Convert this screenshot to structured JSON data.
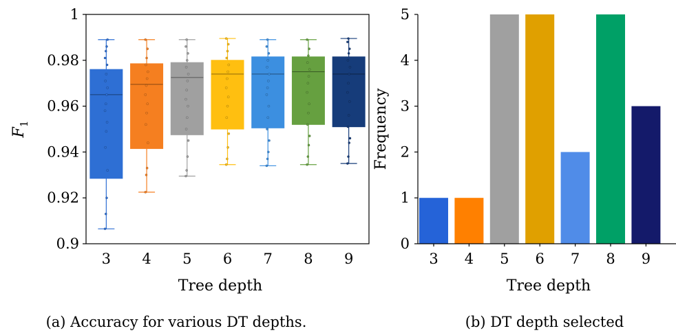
{
  "chart_data": [
    {
      "type": "box",
      "caption": "(a) Accuracy for various DT depths.",
      "xlabel": "Tree depth",
      "ylabel": "F",
      "ylabel_sub": "1",
      "categories": [
        "3",
        "4",
        "5",
        "6",
        "7",
        "8",
        "9"
      ],
      "ylim": [
        0.9,
        1.0
      ],
      "yticks": [
        0.9,
        0.92,
        0.94,
        0.96,
        0.98,
        1.0
      ],
      "ytick_labels": [
        "0.9",
        "0.92",
        "0.94",
        "0.96",
        "0.98",
        "1"
      ],
      "colors": [
        "#2e6fd4",
        "#f57f20",
        "#a0a0a0",
        "#ffbf10",
        "#3c8fe0",
        "#66a040",
        "#163c7a"
      ],
      "boxes": [
        {
          "whislo": 0.9065,
          "q1": 0.9285,
          "med": 0.965,
          "q3": 0.976,
          "whishi": 0.989
        },
        {
          "whislo": 0.9225,
          "q1": 0.9415,
          "med": 0.9695,
          "q3": 0.9785,
          "whishi": 0.989
        },
        {
          "whislo": 0.9295,
          "q1": 0.9475,
          "med": 0.9725,
          "q3": 0.979,
          "whishi": 0.989
        },
        {
          "whislo": 0.9345,
          "q1": 0.95,
          "med": 0.974,
          "q3": 0.98,
          "whishi": 0.9895
        },
        {
          "whislo": 0.934,
          "q1": 0.9505,
          "med": 0.974,
          "q3": 0.9815,
          "whishi": 0.989
        },
        {
          "whislo": 0.9345,
          "q1": 0.952,
          "med": 0.975,
          "q3": 0.9815,
          "whishi": 0.989
        },
        {
          "whislo": 0.935,
          "q1": 0.951,
          "med": 0.974,
          "q3": 0.9815,
          "whishi": 0.9895
        }
      ],
      "points": [
        [
          0.9065,
          0.913,
          0.92,
          0.932,
          0.942,
          0.949,
          0.953,
          0.958,
          0.961,
          0.965,
          0.968,
          0.971,
          0.974,
          0.978,
          0.981,
          0.984,
          0.986,
          0.989
        ],
        [
          0.9225,
          0.93,
          0.933,
          0.944,
          0.952,
          0.957,
          0.961,
          0.965,
          0.969,
          0.972,
          0.975,
          0.978,
          0.981,
          0.985,
          0.989
        ],
        [
          0.9295,
          0.932,
          0.938,
          0.945,
          0.95,
          0.955,
          0.96,
          0.963,
          0.967,
          0.971,
          0.974,
          0.977,
          0.98,
          0.983,
          0.986,
          0.989
        ],
        [
          0.9345,
          0.937,
          0.942,
          0.948,
          0.955,
          0.96,
          0.964,
          0.968,
          0.972,
          0.975,
          0.978,
          0.981,
          0.984,
          0.987,
          0.9895
        ],
        [
          0.934,
          0.937,
          0.94,
          0.945,
          0.95,
          0.955,
          0.96,
          0.965,
          0.968,
          0.971,
          0.974,
          0.977,
          0.98,
          0.983,
          0.986,
          0.989
        ],
        [
          0.9345,
          0.938,
          0.943,
          0.947,
          0.952,
          0.957,
          0.961,
          0.966,
          0.97,
          0.973,
          0.976,
          0.979,
          0.982,
          0.985,
          0.989
        ],
        [
          0.935,
          0.938,
          0.944,
          0.946,
          0.951,
          0.956,
          0.962,
          0.966,
          0.97,
          0.974,
          0.977,
          0.98,
          0.983,
          0.985,
          0.988,
          0.9895
        ]
      ]
    },
    {
      "type": "bar",
      "caption": "(b) DT depth selected",
      "xlabel": "Tree depth",
      "ylabel": "Frequency",
      "categories": [
        "3",
        "4",
        "5",
        "6",
        "7",
        "8",
        "9"
      ],
      "values": [
        1,
        1,
        5,
        5,
        2,
        5,
        3
      ],
      "ylim": [
        0,
        5
      ],
      "yticks": [
        0,
        1,
        2,
        3,
        4,
        5
      ],
      "ytick_labels": [
        "0",
        "1",
        "2",
        "3",
        "4",
        "5"
      ],
      "colors": [
        "#2563d8",
        "#ff8000",
        "#a0a0a0",
        "#e0a000",
        "#508ce8",
        "#00a066",
        "#141a6a"
      ]
    }
  ]
}
